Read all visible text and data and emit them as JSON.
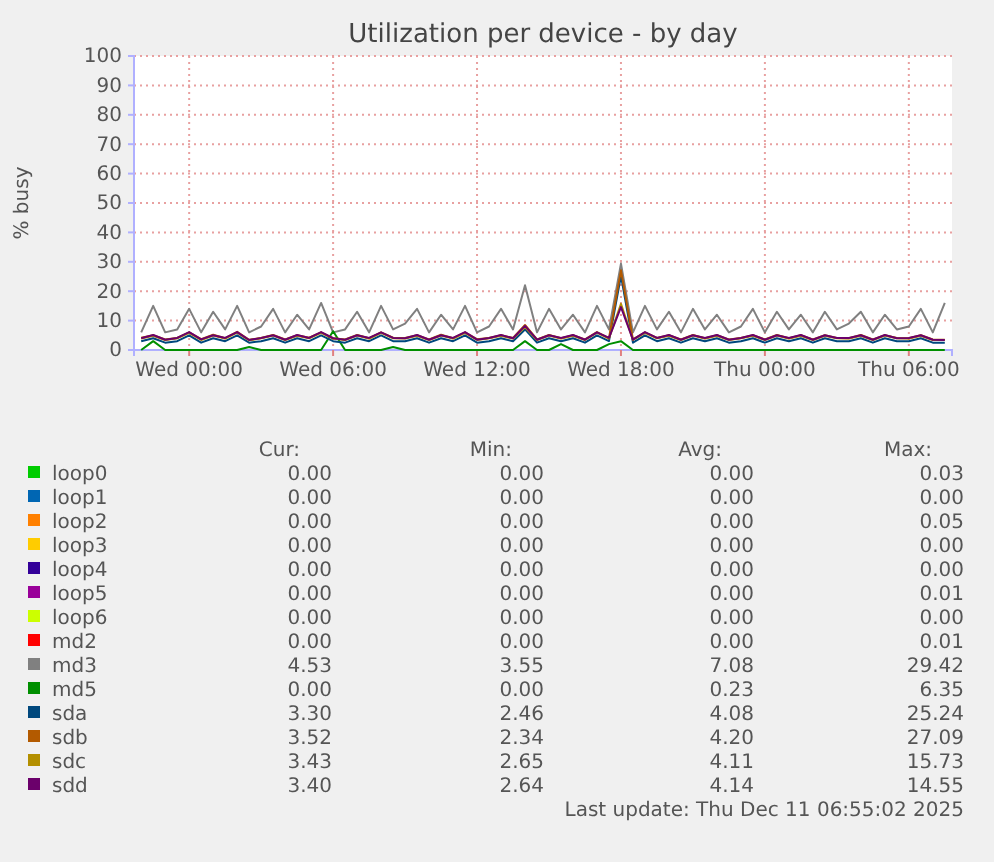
{
  "chart_data": {
    "type": "line",
    "title": "Utilization per device - by day",
    "ylabel": "% busy",
    "x": [
      "2025-12-09T22:00",
      "2025-12-09T22:30",
      "2025-12-09T23:00",
      "2025-12-09T23:30",
      "2025-12-10T00:00",
      "2025-12-10T00:30",
      "2025-12-10T01:00",
      "2025-12-10T01:30",
      "2025-12-10T02:00",
      "2025-12-10T02:30",
      "2025-12-10T03:00",
      "2025-12-10T03:30",
      "2025-12-10T04:00",
      "2025-12-10T04:30",
      "2025-12-10T05:00",
      "2025-12-10T05:30",
      "2025-12-10T06:00",
      "2025-12-10T06:30",
      "2025-12-10T07:00",
      "2025-12-10T07:30",
      "2025-12-10T08:00",
      "2025-12-10T08:30",
      "2025-12-10T09:00",
      "2025-12-10T09:30",
      "2025-12-10T10:00",
      "2025-12-10T10:30",
      "2025-12-10T11:00",
      "2025-12-10T11:30",
      "2025-12-10T12:00",
      "2025-12-10T12:30",
      "2025-12-10T13:00",
      "2025-12-10T13:30",
      "2025-12-10T14:00",
      "2025-12-10T14:30",
      "2025-12-10T15:00",
      "2025-12-10T15:30",
      "2025-12-10T16:00",
      "2025-12-10T16:30",
      "2025-12-10T17:00",
      "2025-12-10T17:30",
      "2025-12-10T18:00",
      "2025-12-10T18:30",
      "2025-12-10T19:00",
      "2025-12-10T19:30",
      "2025-12-10T20:00",
      "2025-12-10T20:30",
      "2025-12-10T21:00",
      "2025-12-10T21:30",
      "2025-12-10T22:00",
      "2025-12-10T22:30",
      "2025-12-10T23:00",
      "2025-12-10T23:30",
      "2025-12-11T00:00",
      "2025-12-11T00:30",
      "2025-12-11T01:00",
      "2025-12-11T01:30",
      "2025-12-11T02:00",
      "2025-12-11T02:30",
      "2025-12-11T03:00",
      "2025-12-11T03:30",
      "2025-12-11T04:00",
      "2025-12-11T04:30",
      "2025-12-11T05:00",
      "2025-12-11T05:30",
      "2025-12-11T06:00",
      "2025-12-11T06:30",
      "2025-12-11T07:00",
      "2025-12-11T07:30"
    ],
    "xlim": [
      "2025-12-09T21:42",
      "2025-12-11T07:48"
    ],
    "xticks": [
      {
        "value": "2025-12-10T00:00",
        "label": "Wed 00:00"
      },
      {
        "value": "2025-12-10T06:00",
        "label": "Wed 06:00"
      },
      {
        "value": "2025-12-10T12:00",
        "label": "Wed 12:00"
      },
      {
        "value": "2025-12-10T18:00",
        "label": "Wed 18:00"
      },
      {
        "value": "2025-12-11T00:00",
        "label": "Thu 00:00"
      },
      {
        "value": "2025-12-11T06:00",
        "label": "Thu 06:00"
      }
    ],
    "ylim": [
      0,
      100
    ],
    "yticks": [
      0,
      10,
      20,
      30,
      40,
      50,
      60,
      70,
      80,
      90,
      100
    ],
    "grid": true,
    "legend": "bottom",
    "series": [
      {
        "name": "loop0",
        "color": "#00cc00",
        "values": [
          null,
          null,
          null,
          null,
          null,
          null,
          null,
          null,
          null,
          null,
          null,
          null,
          null,
          null,
          null,
          null,
          null,
          null,
          null,
          null,
          null,
          null,
          null,
          null,
          null,
          null,
          null,
          null,
          null,
          null,
          null,
          null,
          null,
          null,
          null,
          null,
          null,
          null,
          null,
          null,
          null,
          null,
          null,
          null,
          null,
          null,
          null,
          null,
          null,
          null,
          null,
          null,
          null,
          null,
          null,
          null,
          null,
          null,
          null,
          null,
          null,
          null,
          null,
          null,
          null,
          null,
          null,
          null
        ]
      },
      {
        "name": "loop1",
        "color": "#0066b3",
        "values": [
          null,
          null,
          null,
          null,
          null,
          null,
          null,
          null,
          null,
          null,
          null,
          null,
          null,
          null,
          null,
          null,
          null,
          null,
          null,
          null,
          null,
          null,
          null,
          null,
          null,
          null,
          null,
          null,
          null,
          null,
          null,
          null,
          null,
          null,
          null,
          null,
          null,
          null,
          null,
          null,
          null,
          null,
          null,
          null,
          null,
          null,
          null,
          null,
          null,
          null,
          null,
          null,
          null,
          null,
          null,
          null,
          null,
          null,
          null,
          null,
          null,
          null,
          null,
          null,
          null,
          null,
          null,
          null
        ]
      },
      {
        "name": "loop2",
        "color": "#ff8000",
        "values": [
          null,
          null,
          null,
          null,
          null,
          null,
          null,
          null,
          null,
          null,
          null,
          null,
          null,
          null,
          null,
          null,
          null,
          null,
          null,
          null,
          null,
          null,
          null,
          null,
          null,
          null,
          null,
          null,
          null,
          null,
          null,
          null,
          null,
          null,
          null,
          null,
          null,
          null,
          null,
          null,
          null,
          null,
          null,
          null,
          null,
          null,
          null,
          null,
          null,
          null,
          null,
          null,
          null,
          null,
          null,
          null,
          null,
          null,
          null,
          null,
          null,
          null,
          null,
          null,
          null,
          null,
          null,
          null
        ]
      },
      {
        "name": "loop3",
        "color": "#ffcc00",
        "values": [
          null,
          null,
          null,
          null,
          null,
          null,
          null,
          null,
          null,
          null,
          null,
          null,
          null,
          null,
          null,
          null,
          null,
          null,
          null,
          null,
          null,
          null,
          null,
          null,
          null,
          null,
          null,
          null,
          null,
          null,
          null,
          null,
          null,
          null,
          null,
          null,
          null,
          null,
          null,
          null,
          null,
          null,
          null,
          null,
          null,
          null,
          null,
          null,
          null,
          null,
          null,
          null,
          null,
          null,
          null,
          null,
          null,
          null,
          null,
          null,
          null,
          null,
          null,
          null,
          null,
          null,
          null,
          null
        ]
      },
      {
        "name": "loop4",
        "color": "#330099",
        "values": [
          null,
          null,
          null,
          null,
          null,
          null,
          null,
          null,
          null,
          null,
          null,
          null,
          null,
          null,
          null,
          null,
          null,
          null,
          null,
          null,
          null,
          null,
          null,
          null,
          null,
          null,
          null,
          null,
          null,
          null,
          null,
          null,
          null,
          null,
          null,
          null,
          null,
          null,
          null,
          null,
          null,
          null,
          null,
          null,
          null,
          null,
          null,
          null,
          null,
          null,
          null,
          null,
          null,
          null,
          null,
          null,
          null,
          null,
          null,
          null,
          null,
          null,
          null,
          null,
          null,
          null,
          null,
          null
        ]
      },
      {
        "name": "loop5",
        "color": "#990099",
        "values": [
          null,
          null,
          null,
          null,
          null,
          null,
          null,
          null,
          null,
          null,
          null,
          null,
          null,
          null,
          null,
          null,
          null,
          null,
          null,
          null,
          null,
          null,
          null,
          null,
          null,
          null,
          null,
          null,
          null,
          null,
          null,
          null,
          null,
          null,
          null,
          null,
          null,
          null,
          null,
          null,
          null,
          null,
          null,
          null,
          null,
          null,
          null,
          null,
          null,
          null,
          null,
          null,
          null,
          null,
          null,
          null,
          null,
          null,
          null,
          null,
          null,
          null,
          null,
          null,
          null,
          null,
          null,
          null
        ]
      },
      {
        "name": "loop6",
        "color": "#ccff00",
        "values": [
          null,
          null,
          null,
          null,
          null,
          null,
          null,
          null,
          null,
          null,
          null,
          null,
          null,
          null,
          null,
          null,
          null,
          null,
          null,
          null,
          null,
          null,
          null,
          null,
          null,
          null,
          null,
          null,
          null,
          null,
          null,
          null,
          null,
          null,
          null,
          null,
          null,
          null,
          null,
          null,
          null,
          null,
          null,
          null,
          null,
          null,
          null,
          null,
          null,
          null,
          null,
          null,
          null,
          null,
          null,
          null,
          null,
          null,
          null,
          null,
          null,
          null,
          null,
          null,
          null,
          null,
          null,
          null
        ]
      },
      {
        "name": "md2",
        "color": "#ff0000",
        "values": [
          null,
          null,
          null,
          null,
          null,
          null,
          null,
          null,
          null,
          null,
          null,
          null,
          null,
          null,
          null,
          null,
          null,
          null,
          null,
          null,
          null,
          null,
          null,
          null,
          null,
          null,
          null,
          null,
          null,
          null,
          null,
          null,
          null,
          null,
          null,
          null,
          null,
          null,
          null,
          null,
          null,
          null,
          null,
          null,
          null,
          null,
          null,
          null,
          null,
          null,
          null,
          null,
          null,
          null,
          null,
          null,
          null,
          null,
          null,
          null,
          null,
          null,
          null,
          null,
          null,
          null,
          null,
          null
        ]
      },
      {
        "name": "md3",
        "color": "#808080",
        "values": [
          6,
          15,
          6,
          7,
          14,
          6,
          13,
          7,
          15,
          6,
          8,
          14,
          6,
          12,
          7,
          16,
          6,
          7,
          13,
          6,
          15,
          7,
          9,
          14,
          6,
          12,
          7,
          15,
          6,
          8,
          14,
          7,
          22,
          6,
          14,
          7,
          12,
          6,
          15,
          7,
          29.4,
          6,
          15,
          7,
          13,
          6,
          14,
          7,
          12,
          6,
          8,
          14,
          6,
          13,
          7,
          12,
          6,
          13,
          7,
          9,
          13,
          6,
          12,
          7,
          8,
          14,
          6,
          16
        ]
      },
      {
        "name": "md5",
        "color": "#008f00",
        "values": [
          0,
          3,
          0,
          0,
          0,
          0,
          0,
          0,
          0,
          1,
          0,
          0,
          0,
          0,
          0,
          0,
          6.4,
          0,
          0,
          0,
          0,
          1,
          0,
          0,
          0,
          0,
          0,
          0,
          0,
          0,
          0,
          0,
          3,
          0,
          0,
          2,
          0,
          0,
          0,
          2,
          3,
          0,
          0,
          0,
          0,
          0,
          0,
          0,
          0,
          0,
          0,
          0,
          0,
          0,
          0,
          0,
          0,
          0,
          0,
          0,
          0,
          0,
          0,
          0,
          0,
          0,
          0,
          0
        ]
      },
      {
        "name": "sda",
        "color": "#00487d",
        "values": [
          3,
          4,
          2.5,
          3,
          5,
          2.5,
          4,
          3,
          5,
          2.5,
          3,
          4,
          2.5,
          4,
          3,
          5,
          3,
          2.5,
          4,
          3,
          5,
          3,
          3,
          4,
          2.5,
          4,
          3,
          5,
          2.5,
          3,
          4,
          3,
          7,
          2.5,
          4,
          3,
          4,
          2.5,
          5,
          3,
          25.2,
          2.5,
          5,
          3,
          4,
          2.5,
          4,
          3,
          4,
          2.5,
          3,
          4,
          2.5,
          4,
          3,
          4,
          2.5,
          4,
          3,
          3,
          4,
          2.5,
          4,
          3,
          3,
          4,
          2.5,
          2.5
        ]
      },
      {
        "name": "sdb",
        "color": "#b35a00",
        "values": [
          4.2,
          5,
          3.6,
          4.1,
          6,
          3.7,
          5.2,
          4,
          6.2,
          3.5,
          4.1,
          5.1,
          3.6,
          5,
          4.2,
          6,
          4,
          3.6,
          5.1,
          4,
          6,
          4.2,
          4.1,
          5,
          3.6,
          5.2,
          4,
          6,
          3.7,
          4.1,
          5,
          4.1,
          8.5,
          3.6,
          5.1,
          4,
          5,
          3.6,
          6.1,
          4,
          27.1,
          3.6,
          6,
          4.1,
          5,
          3.6,
          5.1,
          4,
          5,
          3.6,
          4.1,
          5,
          3.6,
          5.1,
          4,
          5,
          3.6,
          5,
          4.1,
          4,
          5.1,
          3.6,
          5,
          4.1,
          4,
          5,
          3.6,
          3.5
        ]
      },
      {
        "name": "sdc",
        "color": "#b38f00",
        "values": [
          3.9,
          4.8,
          3.4,
          4,
          5.8,
          3.4,
          4.9,
          3.9,
          5.9,
          3.3,
          4,
          4.9,
          3.4,
          4.8,
          4,
          5.8,
          3.9,
          3.4,
          4.9,
          3.9,
          5.8,
          4,
          3.9,
          4.8,
          3.4,
          4.9,
          3.9,
          5.8,
          3.4,
          4,
          4.8,
          3.9,
          7.8,
          3.4,
          4.9,
          3.9,
          4.8,
          3.4,
          5.9,
          3.9,
          15.7,
          3.4,
          5.8,
          4,
          4.8,
          3.4,
          4.9,
          3.9,
          4.8,
          3.4,
          4,
          4.8,
          3.4,
          4.9,
          3.9,
          4.8,
          3.4,
          4.8,
          4,
          3.9,
          4.8,
          3.4,
          4.9,
          4,
          3.9,
          4.8,
          3.4,
          3.4
        ]
      },
      {
        "name": "sdd",
        "color": "#6b006b",
        "values": [
          4,
          5.1,
          3.5,
          4.1,
          6.1,
          3.6,
          5,
          4.1,
          6.1,
          3.4,
          4.1,
          5,
          3.5,
          5.1,
          4.1,
          6.1,
          4,
          3.5,
          5,
          4.1,
          6,
          4.1,
          4,
          5.1,
          3.5,
          5,
          4.1,
          6.1,
          3.5,
          4.1,
          5.1,
          4,
          8.2,
          3.5,
          5,
          4.1,
          5.1,
          3.5,
          6,
          4.1,
          14.6,
          3.5,
          6.1,
          4.1,
          5.1,
          3.5,
          5,
          4.1,
          5.1,
          3.5,
          4.1,
          5.1,
          3.5,
          5,
          4.1,
          5.1,
          3.5,
          5,
          4.1,
          4.1,
          5,
          3.5,
          5.1,
          4,
          4.1,
          5,
          3.5,
          3.4
        ]
      }
    ],
    "annotations": [
      "Cur:",
      "Min:",
      "Avg:",
      "Max:",
      "0.00",
      "0.00",
      "0.00",
      "0.03",
      "0.00",
      "0.00",
      "0.00",
      "0.00",
      "0.00",
      "0.00",
      "0.00",
      "0.05",
      "0.00",
      "0.00",
      "0.00",
      "0.00",
      "0.00",
      "0.00",
      "0.00",
      "0.00",
      "0.00",
      "0.00",
      "0.00",
      "0.01",
      "0.00",
      "0.00",
      "0.00",
      "0.00",
      "0.00",
      "0.00",
      "0.00",
      "0.01",
      "4.53",
      "3.55",
      "7.08",
      "29.42",
      "0.00",
      "0.00",
      "0.23",
      "6.35",
      "3.30",
      "2.46",
      "4.08",
      "25.24",
      "3.52",
      "2.34",
      "4.20",
      "27.09",
      "3.43",
      "2.65",
      "4.11",
      "15.73",
      "3.40",
      "2.64",
      "4.14",
      "14.55",
      "Last update: Thu Dec 11 06:55:02 2025"
    ]
  }
}
